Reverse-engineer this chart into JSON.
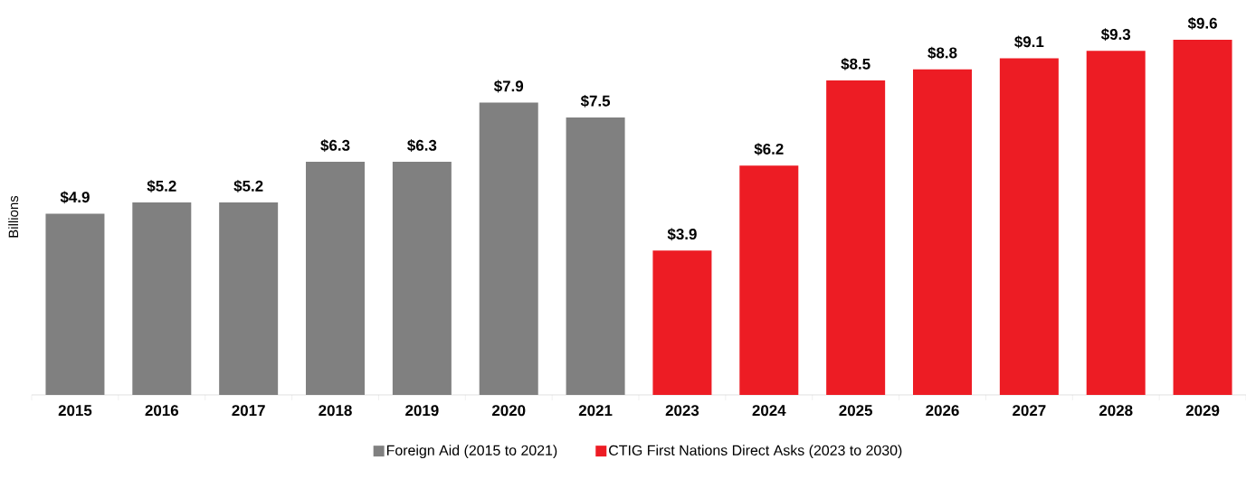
{
  "chart_data": {
    "type": "bar",
    "ylabel": "Billions",
    "categories": [
      "2015",
      "2016",
      "2017",
      "2018",
      "2019",
      "2020",
      "2021",
      "2023",
      "2024",
      "2025",
      "2026",
      "2027",
      "2028",
      "2029"
    ],
    "series": [
      {
        "name": "Foreign Aid (2015 to 2021)",
        "color": "#808080",
        "values": [
          4.9,
          5.2,
          5.2,
          6.3,
          6.3,
          7.9,
          7.5,
          null,
          null,
          null,
          null,
          null,
          null,
          null
        ],
        "value_labels": [
          "$4.9",
          "$5.2",
          "$5.2",
          "$6.3",
          "$6.3",
          "$7.9",
          "$7.5",
          null,
          null,
          null,
          null,
          null,
          null,
          null
        ]
      },
      {
        "name": "CTIG First Nations Direct Asks (2023 to 2030)",
        "color": "#ed1c24",
        "values": [
          null,
          null,
          null,
          null,
          null,
          null,
          null,
          3.9,
          6.2,
          8.5,
          8.8,
          9.1,
          9.3,
          9.6
        ],
        "value_labels": [
          null,
          null,
          null,
          null,
          null,
          null,
          null,
          "$3.9",
          "$6.2",
          "$8.5",
          "$8.8",
          "$9.1",
          "$9.3",
          "$9.6"
        ]
      }
    ],
    "legend": "bottom"
  }
}
